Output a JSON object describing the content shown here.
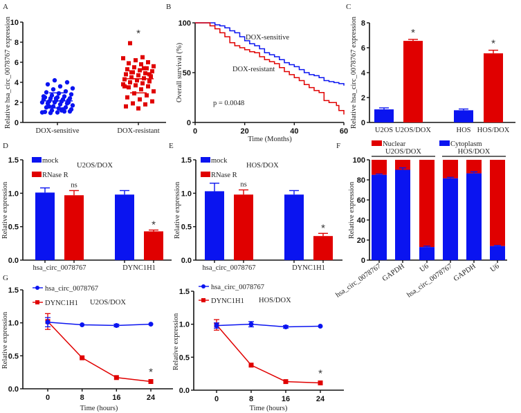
{
  "colors": {
    "blue": "#0a14f0",
    "red": "#e00000",
    "axis": "#111111"
  },
  "chart_data": [
    {
      "panel": "A",
      "type": "scatter",
      "ylabel": "Relative hsa_circ_0078767 expression",
      "ylim": [
        0,
        10
      ],
      "yticks": [
        0,
        2,
        4,
        6,
        8,
        10
      ],
      "categories": [
        "DOX-sensitive",
        "DOX-resistant"
      ],
      "series": [
        {
          "category": "DOX-sensitive",
          "color": "blue",
          "mean": 2.15,
          "sd_upper": 2.95,
          "sd_lower": 1.45,
          "values": [
            1.0,
            1.05,
            1.1,
            1.2,
            1.3,
            1.4,
            1.5,
            1.5,
            1.6,
            1.7,
            1.8,
            1.9,
            1.9,
            2.0,
            2.0,
            2.1,
            2.1,
            2.2,
            2.2,
            2.3,
            2.3,
            2.4,
            2.4,
            2.5,
            2.5,
            2.6,
            2.7,
            2.8,
            2.9,
            3.0,
            3.1,
            3.3,
            3.4,
            3.6,
            3.8,
            4.0,
            4.2,
            1.0,
            1.2,
            1.6,
            2.0,
            2.4,
            2.6,
            1.3,
            0.95,
            1.1
          ]
        },
        {
          "category": "DOX-resistant",
          "color": "red",
          "mean": 4.35,
          "sd_upper": 4.35,
          "sd_lower": 2.95,
          "values": [
            1.4,
            1.6,
            1.8,
            1.9,
            2.1,
            2.3,
            2.5,
            2.7,
            2.9,
            3.1,
            3.3,
            3.5,
            3.6,
            3.7,
            3.8,
            3.9,
            4.0,
            4.1,
            4.2,
            4.3,
            4.4,
            4.5,
            4.6,
            4.7,
            4.8,
            4.9,
            5.0,
            5.1,
            5.2,
            5.3,
            5.4,
            5.5,
            5.6,
            5.8,
            5.9,
            6.0,
            6.2,
            6.4,
            6.5,
            7.9,
            4.8,
            4.2,
            3.6,
            5.4,
            5.0
          ]
        }
      ],
      "annotations": [
        "*"
      ]
    },
    {
      "panel": "B",
      "type": "line",
      "xlabel": "Time (Months)",
      "ylabel": "Overall survival (%)",
      "xlim": [
        0,
        60
      ],
      "xticks": [
        0,
        20,
        40,
        60
      ],
      "ylim": [
        0,
        100
      ],
      "yticks": [
        0,
        50,
        100
      ],
      "series": [
        {
          "name": "DOX-sensitive",
          "color": "blue",
          "points": [
            [
              0,
              100
            ],
            [
              4,
              100
            ],
            [
              8,
              98
            ],
            [
              10,
              97
            ],
            [
              12,
              95
            ],
            [
              14,
              92
            ],
            [
              16,
              90
            ],
            [
              18,
              86
            ],
            [
              20,
              82
            ],
            [
              22,
              79
            ],
            [
              24,
              77
            ],
            [
              26,
              74
            ],
            [
              28,
              70
            ],
            [
              30,
              68
            ],
            [
              32,
              66
            ],
            [
              34,
              63
            ],
            [
              36,
              60
            ],
            [
              38,
              58
            ],
            [
              40,
              56
            ],
            [
              42,
              53
            ],
            [
              44,
              50
            ],
            [
              46,
              48
            ],
            [
              48,
              47
            ],
            [
              50,
              45
            ],
            [
              52,
              42
            ],
            [
              54,
              41
            ],
            [
              56,
              40
            ],
            [
              58,
              39
            ],
            [
              60,
              37
            ]
          ]
        },
        {
          "name": "DOX-resistant",
          "color": "red",
          "points": [
            [
              0,
              100
            ],
            [
              4,
              100
            ],
            [
              6,
              97
            ],
            [
              8,
              94
            ],
            [
              10,
              90
            ],
            [
              12,
              86
            ],
            [
              14,
              80
            ],
            [
              16,
              77
            ],
            [
              18,
              75
            ],
            [
              20,
              73
            ],
            [
              22,
              71
            ],
            [
              24,
              70
            ],
            [
              26,
              66
            ],
            [
              28,
              63
            ],
            [
              30,
              61
            ],
            [
              32,
              59
            ],
            [
              34,
              55
            ],
            [
              36,
              51
            ],
            [
              38,
              48
            ],
            [
              40,
              45
            ],
            [
              42,
              42
            ],
            [
              44,
              38
            ],
            [
              46,
              35
            ],
            [
              48,
              32
            ],
            [
              50,
              30
            ],
            [
              52,
              22
            ],
            [
              54,
              20
            ],
            [
              56,
              20
            ],
            [
              57,
              17
            ],
            [
              58,
              12
            ],
            [
              60,
              8
            ]
          ]
        }
      ],
      "annotations": [
        "p = 0.0048"
      ]
    },
    {
      "panel": "C",
      "type": "bar",
      "ylabel": "Relative hsa_circ_0078767 expression",
      "ylim": [
        0,
        8
      ],
      "yticks": [
        0,
        2,
        4,
        6,
        8
      ],
      "categories": [
        "U2OS",
        "U2OS/DOX",
        "HOS",
        "HOS/DOX"
      ],
      "values": [
        1.05,
        6.55,
        0.98,
        5.55
      ],
      "errors": [
        0.12,
        0.12,
        0.1,
        0.25
      ],
      "colors": [
        "blue",
        "red",
        "blue",
        "red"
      ],
      "stars": [
        false,
        true,
        false,
        true
      ]
    },
    {
      "panel": "D",
      "type": "bar",
      "title": "U2OS/DOX",
      "ylabel": "Relative expression",
      "ylim": [
        0,
        1.5
      ],
      "yticks": [
        "0.0",
        "0.5",
        "1.0",
        "1.5"
      ],
      "categories": [
        "hsa_circ_0078767",
        "DYNC1H1"
      ],
      "series": [
        {
          "name": "mock",
          "color": "blue",
          "values": [
            1.01,
            0.98
          ],
          "errors": [
            0.07,
            0.06
          ]
        },
        {
          "name": "RNase R",
          "color": "red",
          "values": [
            0.97,
            0.43
          ],
          "errors": [
            0.07,
            0.02
          ]
        }
      ],
      "annotations": [
        {
          "category": "hsa_circ_0078767",
          "text": "ns"
        },
        {
          "category": "DYNC1H1",
          "text": "*"
        }
      ]
    },
    {
      "panel": "E",
      "type": "bar",
      "title": "HOS/DOX",
      "ylabel": "Relative expression",
      "ylim": [
        0,
        1.5
      ],
      "yticks": [
        "0.0",
        "0.5",
        "1.0",
        "1.5"
      ],
      "categories": [
        "hsa_circ_0078767",
        "DYNC1H1"
      ],
      "series": [
        {
          "name": "mock",
          "color": "blue",
          "values": [
            1.03,
            0.98
          ],
          "errors": [
            0.12,
            0.06
          ]
        },
        {
          "name": "RNase R",
          "color": "red",
          "values": [
            0.98,
            0.36
          ],
          "errors": [
            0.07,
            0.04
          ]
        }
      ],
      "annotations": [
        {
          "category": "hsa_circ_0078767",
          "text": "ns"
        },
        {
          "category": "DYNC1H1",
          "text": "*"
        }
      ]
    },
    {
      "panel": "F",
      "type": "bar",
      "stacked": true,
      "ylabel": "Relative expression",
      "ylim": [
        0,
        100
      ],
      "yticks": [
        0,
        20,
        40,
        60,
        80,
        100
      ],
      "groups": [
        "U2OS/DOX",
        "HOS/DOX"
      ],
      "categories": [
        "hsa_circ_0078767",
        "GAPDH",
        "U6",
        "hsa_circ_0078767",
        "GAPDH",
        "U6"
      ],
      "series": [
        {
          "name": "Cytoplasm",
          "color": "blue",
          "values": [
            85,
            90,
            13,
            81.5,
            86.5,
            14
          ],
          "errors": [
            0.8,
            2,
            1,
            1,
            1.5,
            0.6
          ]
        },
        {
          "name": "Nuclear",
          "color": "red",
          "values": [
            15,
            10,
            87,
            18.5,
            13.5,
            86
          ]
        }
      ]
    },
    {
      "panel": "G1",
      "type": "line",
      "title": "U2OS/DOX",
      "xlabel": "Time (hours)",
      "ylabel": "Relative expression",
      "x": [
        0,
        8,
        16,
        24
      ],
      "ylim": [
        0,
        1.5
      ],
      "yticks": [
        "0.0",
        "0.5",
        "1.0",
        "1.5"
      ],
      "series": [
        {
          "name": "hsa_circ_0078767",
          "color": "blue",
          "marker": "circle",
          "values": [
            1.01,
            0.97,
            0.96,
            0.98
          ],
          "errors": [
            0.07,
            0.01,
            0.02,
            0.01
          ]
        },
        {
          "name": "DYNC1H1",
          "color": "red",
          "marker": "square",
          "values": [
            1.02,
            0.47,
            0.17,
            0.11
          ],
          "errors": [
            0.12,
            0.01,
            0.01,
            0.01
          ]
        }
      ],
      "annotations": [
        {
          "x": 24,
          "text": "*"
        }
      ]
    },
    {
      "panel": "G2",
      "type": "line",
      "title": "HOS/DOX",
      "xlabel": "Time (hours)",
      "ylabel": "Relative expression",
      "x": [
        0,
        8,
        16,
        24
      ],
      "ylim": [
        0,
        1.5
      ],
      "yticks": [
        "0.0",
        "0.5",
        "1.0",
        "1.5"
      ],
      "series": [
        {
          "name": "hsa_circ_0078767",
          "color": "blue",
          "marker": "circle",
          "values": [
            0.98,
            1.0,
            0.96,
            0.97
          ],
          "errors": [
            0.04,
            0.04,
            0.02,
            0.01
          ]
        },
        {
          "name": "DYNC1H1",
          "color": "red",
          "marker": "square",
          "values": [
            0.99,
            0.38,
            0.13,
            0.11
          ],
          "errors": [
            0.08,
            0.01,
            0.01,
            0.01
          ]
        }
      ],
      "annotations": [
        {
          "x": 24,
          "text": "*"
        }
      ]
    }
  ],
  "panel_letters": [
    "A",
    "B",
    "C",
    "D",
    "E",
    "F",
    "G"
  ]
}
